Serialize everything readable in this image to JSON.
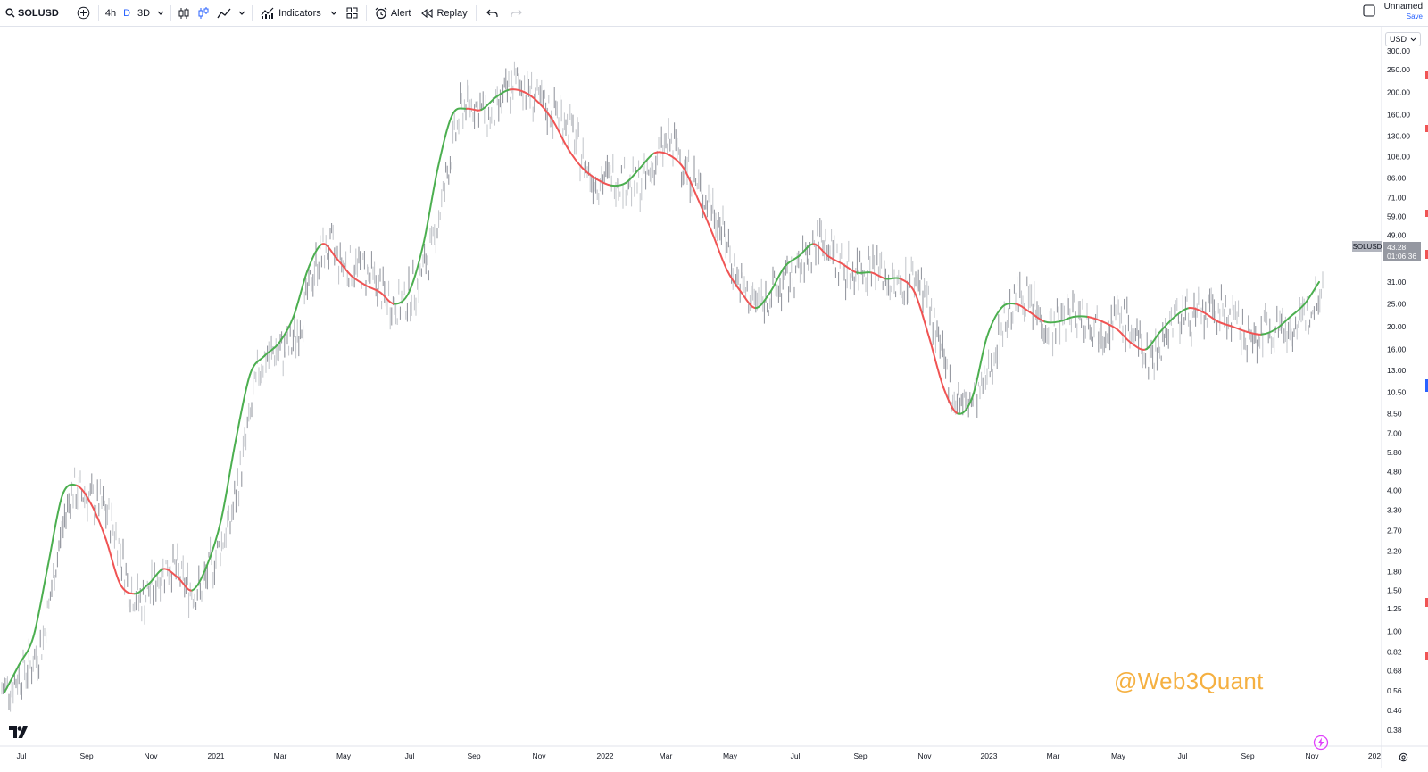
{
  "toolbar": {
    "symbol": "SOLUSD",
    "intervals": [
      "4h",
      "D",
      "3D"
    ],
    "active_interval": "D",
    "indicators_label": "Indicators",
    "alert_label": "Alert",
    "replay_label": "Replay",
    "layout_name": "Unnamed",
    "save_label": "Save"
  },
  "price_scale": {
    "currency": "USD",
    "labels": [
      "300.00",
      "250.00",
      "200.00",
      "160.00",
      "130.00",
      "106.00",
      "86.00",
      "71.00",
      "59.00",
      "49.00",
      "31.00",
      "25.00",
      "20.00",
      "16.00",
      "13.00",
      "10.50",
      "8.50",
      "7.00",
      "5.80",
      "4.80",
      "4.00",
      "3.30",
      "2.70",
      "2.20",
      "1.80",
      "1.50",
      "1.25",
      "1.00",
      "0.82",
      "0.68",
      "0.56",
      "0.46",
      "0.38"
    ]
  },
  "time_axis": {
    "labels": [
      "Jul",
      "Sep",
      "Nov",
      "2021",
      "Mar",
      "May",
      "Jul",
      "Sep",
      "Nov",
      "2022",
      "Mar",
      "May",
      "Jul",
      "Sep",
      "Nov",
      "2023",
      "Mar",
      "May",
      "Jul",
      "Sep",
      "Nov",
      "202"
    ]
  },
  "last_price": {
    "symbol": "SOLUSD",
    "price": "43.28",
    "countdown": "01:06:36"
  },
  "watermark": "@Web3Quant",
  "colors": {
    "up": "#4caf50",
    "down": "#f05454",
    "bars": "#9598a1",
    "accent": "#2962ff",
    "watermark": "#f5b041"
  },
  "chart_data": {
    "type": "line",
    "log_scale": true,
    "ylim": [
      0.38,
      300
    ],
    "series": [
      {
        "values": [
          0.55,
          0.72,
          0.95,
          1.9,
          3.8,
          4.2,
          3.5,
          2.5,
          1.6,
          1.45,
          1.6,
          1.85,
          1.7,
          1.5,
          1.9,
          3.0,
          6.5,
          12.5,
          15,
          17,
          22,
          35,
          45,
          39,
          33,
          30,
          28,
          25,
          28,
          45,
          95,
          160,
          170,
          168,
          190,
          205,
          200,
          180,
          150,
          115,
          95,
          85,
          80,
          82,
          95,
          110,
          108,
          95,
          70,
          50,
          35,
          28,
          24,
          28,
          36,
          40,
          45,
          40,
          37,
          34,
          34,
          32,
          32,
          28,
          18,
          11,
          8.5,
          10,
          18,
          24,
          25,
          23,
          21,
          21,
          22,
          22,
          21,
          19.5,
          17,
          16,
          19,
          22,
          24,
          23,
          21,
          20,
          19,
          18.5,
          19.5,
          22,
          25,
          31
        ]
      }
    ]
  }
}
